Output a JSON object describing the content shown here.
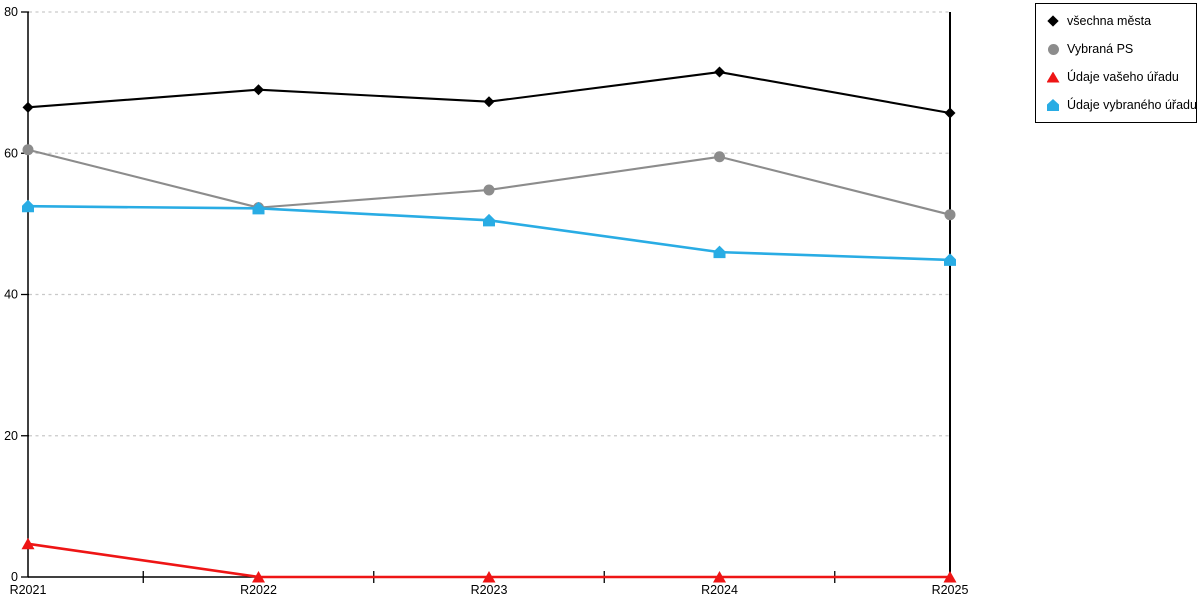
{
  "chart_data": {
    "type": "line",
    "title": "",
    "xlabel": "",
    "ylabel": "",
    "categories": [
      "R2021",
      "R2022",
      "R2023",
      "R2024",
      "R2025"
    ],
    "series": [
      {
        "name": "všechna města",
        "marker": "diamond",
        "color": "#000000",
        "values": [
          66.5,
          69.0,
          67.3,
          71.5,
          65.7
        ]
      },
      {
        "name": "Vybraná PS",
        "marker": "circle",
        "color": "#8c8c8c",
        "values": [
          60.5,
          52.3,
          54.8,
          59.5,
          51.3
        ]
      },
      {
        "name": "Údaje vašeho úřadu",
        "marker": "triangle",
        "color": "#ee1515",
        "values": [
          4.7,
          0,
          0,
          0,
          0
        ]
      },
      {
        "name": "Údaje vybraného úřadu",
        "marker": "pentagon",
        "color": "#29ace4",
        "values": [
          52.5,
          52.2,
          50.5,
          46.0,
          44.9
        ]
      }
    ],
    "ylim": [
      0,
      80
    ],
    "yticks": [
      0,
      20,
      40,
      60,
      80
    ],
    "grid": "horizontal-dashed",
    "gridline_color": "#c9c9c9",
    "axis_color": "#000000",
    "legend_position": "outside-top-right"
  }
}
